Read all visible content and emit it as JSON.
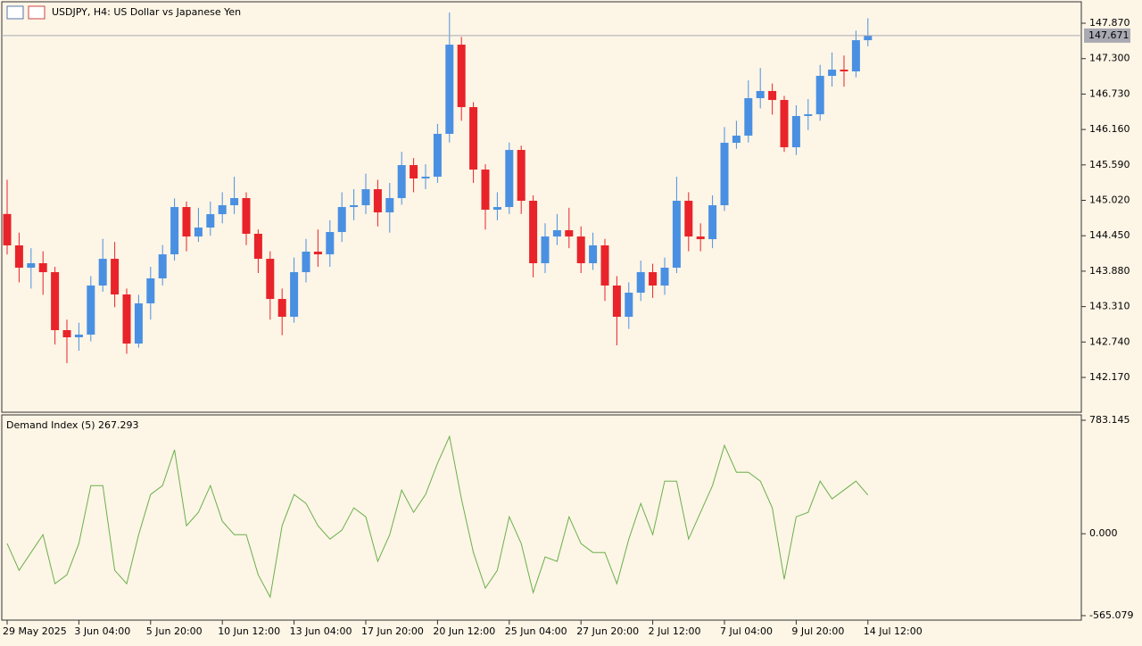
{
  "chart_data": [
    {
      "type": "candlestick",
      "title": "USDJPY, H4:  US Dollar vs Japanese Yen",
      "categories": [
        "29 May 2025",
        null,
        null,
        null,
        null,
        null,
        "3 Jun 04:00",
        null,
        null,
        null,
        null,
        null,
        "5 Jun 20:00",
        null,
        null,
        null,
        null,
        null,
        "10 Jun 12:00",
        null,
        null,
        null,
        null,
        null,
        "13 Jun 04:00",
        null,
        null,
        null,
        null,
        null,
        "17 Jun 20:00",
        null,
        null,
        null,
        null,
        null,
        "20 Jun 12:00",
        null,
        null,
        null,
        null,
        null,
        "25 Jun 04:00",
        null,
        null,
        null,
        null,
        null,
        "27 Jun 20:00",
        null,
        null,
        null,
        null,
        null,
        "2 Jul 12:00",
        null,
        null,
        null,
        null,
        null,
        "7 Jul 04:00",
        null,
        null,
        null,
        null,
        null,
        "9 Jul 20:00",
        null,
        null,
        null,
        null,
        null,
        "14 Jul 12:00"
      ],
      "open": [
        144.8,
        144.295,
        143.936,
        144.008,
        143.864,
        142.931,
        142.816,
        142.859,
        143.649,
        144.079,
        143.505,
        142.715,
        143.362,
        143.764,
        144.151,
        144.912,
        144.438,
        144.582,
        144.797,
        144.941,
        145.056,
        144.482,
        144.079,
        143.433,
        143.146,
        143.864,
        144.194,
        144.151,
        144.51,
        144.912,
        144.941,
        145.199,
        144.826,
        145.056,
        145.587,
        145.372,
        145.4,
        146.09,
        147.525,
        146.52,
        145.515,
        144.869,
        144.912,
        145.831,
        145.013,
        144.008,
        144.438,
        144.539,
        144.438,
        144.008,
        144.295,
        143.649,
        143.146,
        143.534,
        143.864,
        143.649,
        143.936,
        145.013,
        144.438,
        144.395,
        144.941,
        145.946,
        146.061,
        146.664,
        146.779,
        146.635,
        145.874,
        146.377,
        146.405,
        147.023,
        147.123,
        147.095,
        147.597
      ],
      "high": [
        145.35,
        144.5,
        144.25,
        144.2,
        143.95,
        143.1,
        143.05,
        143.8,
        144.4,
        144.35,
        143.6,
        143.5,
        143.95,
        144.3,
        145.05,
        145.0,
        144.9,
        145.0,
        145.15,
        145.4,
        145.15,
        144.55,
        144.2,
        143.6,
        144.1,
        144.4,
        144.55,
        144.7,
        145.15,
        145.2,
        145.45,
        145.35,
        145.3,
        145.8,
        145.7,
        145.6,
        146.25,
        148.042,
        147.65,
        146.6,
        145.6,
        145.15,
        145.95,
        145.9,
        145.1,
        144.65,
        144.8,
        144.9,
        144.6,
        144.5,
        144.4,
        143.8,
        143.7,
        144.05,
        144.0,
        144.1,
        145.4,
        145.15,
        144.65,
        145.1,
        146.2,
        146.3,
        146.95,
        147.15,
        146.9,
        146.7,
        146.55,
        146.65,
        147.2,
        147.4,
        147.35,
        147.75,
        147.95
      ],
      "low": [
        144.15,
        143.7,
        143.6,
        143.5,
        142.7,
        142.4,
        142.6,
        142.75,
        143.55,
        143.3,
        142.55,
        142.65,
        143.1,
        143.65,
        144.05,
        144.2,
        144.35,
        144.45,
        144.65,
        144.8,
        144.3,
        143.85,
        143.1,
        142.85,
        143.05,
        143.7,
        143.95,
        143.95,
        144.35,
        144.7,
        144.8,
        144.6,
        144.5,
        144.95,
        145.15,
        145.2,
        145.3,
        145.95,
        146.3,
        145.3,
        144.55,
        144.7,
        144.8,
        144.8,
        143.78,
        143.85,
        144.3,
        144.25,
        143.85,
        143.9,
        143.4,
        142.687,
        142.95,
        143.4,
        143.45,
        143.5,
        143.85,
        144.2,
        144.2,
        144.25,
        144.85,
        145.85,
        145.95,
        146.5,
        146.4,
        145.8,
        145.75,
        146.15,
        146.3,
        146.85,
        146.85,
        147.0,
        147.5
      ],
      "close": [
        144.295,
        143.936,
        144.008,
        143.864,
        142.931,
        142.816,
        142.859,
        143.649,
        144.079,
        143.505,
        142.715,
        143.362,
        143.764,
        144.151,
        144.912,
        144.438,
        144.582,
        144.797,
        144.941,
        145.056,
        144.482,
        144.079,
        143.433,
        143.146,
        143.864,
        144.194,
        144.151,
        144.51,
        144.912,
        144.941,
        145.199,
        144.826,
        145.056,
        145.587,
        145.372,
        145.4,
        146.09,
        147.525,
        146.52,
        145.515,
        144.869,
        144.912,
        145.831,
        145.013,
        144.008,
        144.438,
        144.539,
        144.438,
        144.008,
        144.295,
        143.649,
        143.146,
        143.534,
        143.864,
        143.649,
        143.936,
        145.013,
        144.438,
        144.395,
        144.941,
        145.946,
        146.061,
        146.664,
        146.779,
        146.635,
        145.874,
        146.377,
        146.405,
        147.023,
        147.123,
        147.095,
        147.597,
        147.671
      ],
      "up_color": "#4a90e2",
      "down_color": "#e8232a",
      "last_price": 147.671,
      "last_price_color": "#a9a9b3",
      "ylim": [
        141.61,
        148.215
      ],
      "yticks": [
        {
          "value": 142.17,
          "label": "142.170"
        },
        {
          "value": 142.74,
          "label": "142.740"
        },
        {
          "value": 143.31,
          "label": "143.310"
        },
        {
          "value": 143.88,
          "label": "143.880"
        },
        {
          "value": 144.45,
          "label": "144.450"
        },
        {
          "value": 145.02,
          "label": "145.020"
        },
        {
          "value": 145.59,
          "label": "145.590"
        },
        {
          "value": 146.16,
          "label": "146.160"
        },
        {
          "value": 146.73,
          "label": "146.730"
        },
        {
          "value": 147.3,
          "label": "147.300"
        },
        {
          "value": 147.87,
          "label": "147.870"
        }
      ]
    },
    {
      "type": "line",
      "title": "Demand Index (5) 267.293",
      "color": "#6ab04c",
      "values": [
        -67.7,
        -252.4,
        -129.3,
        -6.2,
        -344.7,
        -283.2,
        -67.7,
        332.4,
        332.4,
        -252.4,
        -344.7,
        -6.2,
        270.9,
        332.4,
        578.7,
        55.4,
        147.7,
        332.4,
        86.2,
        -6.2,
        -6.2,
        -283.2,
        -437.1,
        55.4,
        270.9,
        209.3,
        55.4,
        -36.9,
        24.6,
        178.5,
        117.0,
        -190.8,
        -6.2,
        301.6,
        147.7,
        270.9,
        486.3,
        671.0,
        240.1,
        -129.3,
        -375.5,
        -252.4,
        117.0,
        -67.7,
        -406.3,
        -160.1,
        -190.8,
        117.0,
        -67.7,
        -129.3,
        -129.3,
        -344.7,
        -36.9,
        209.3,
        -6.2,
        363.2,
        363.2,
        -36.9,
        147.7,
        332.4,
        609.4,
        424.8,
        424.8,
        363.2,
        178.5,
        -314.0,
        117.0,
        147.7,
        363.2,
        240.1,
        301.6,
        363.2,
        267.293
      ],
      "ylim": [
        -596,
        820
      ],
      "yticks": [
        {
          "value": 783.145,
          "label": "783.145"
        },
        {
          "value": 0,
          "label": "0.000"
        },
        {
          "value": -565.079,
          "label": "-565.079"
        }
      ]
    }
  ]
}
